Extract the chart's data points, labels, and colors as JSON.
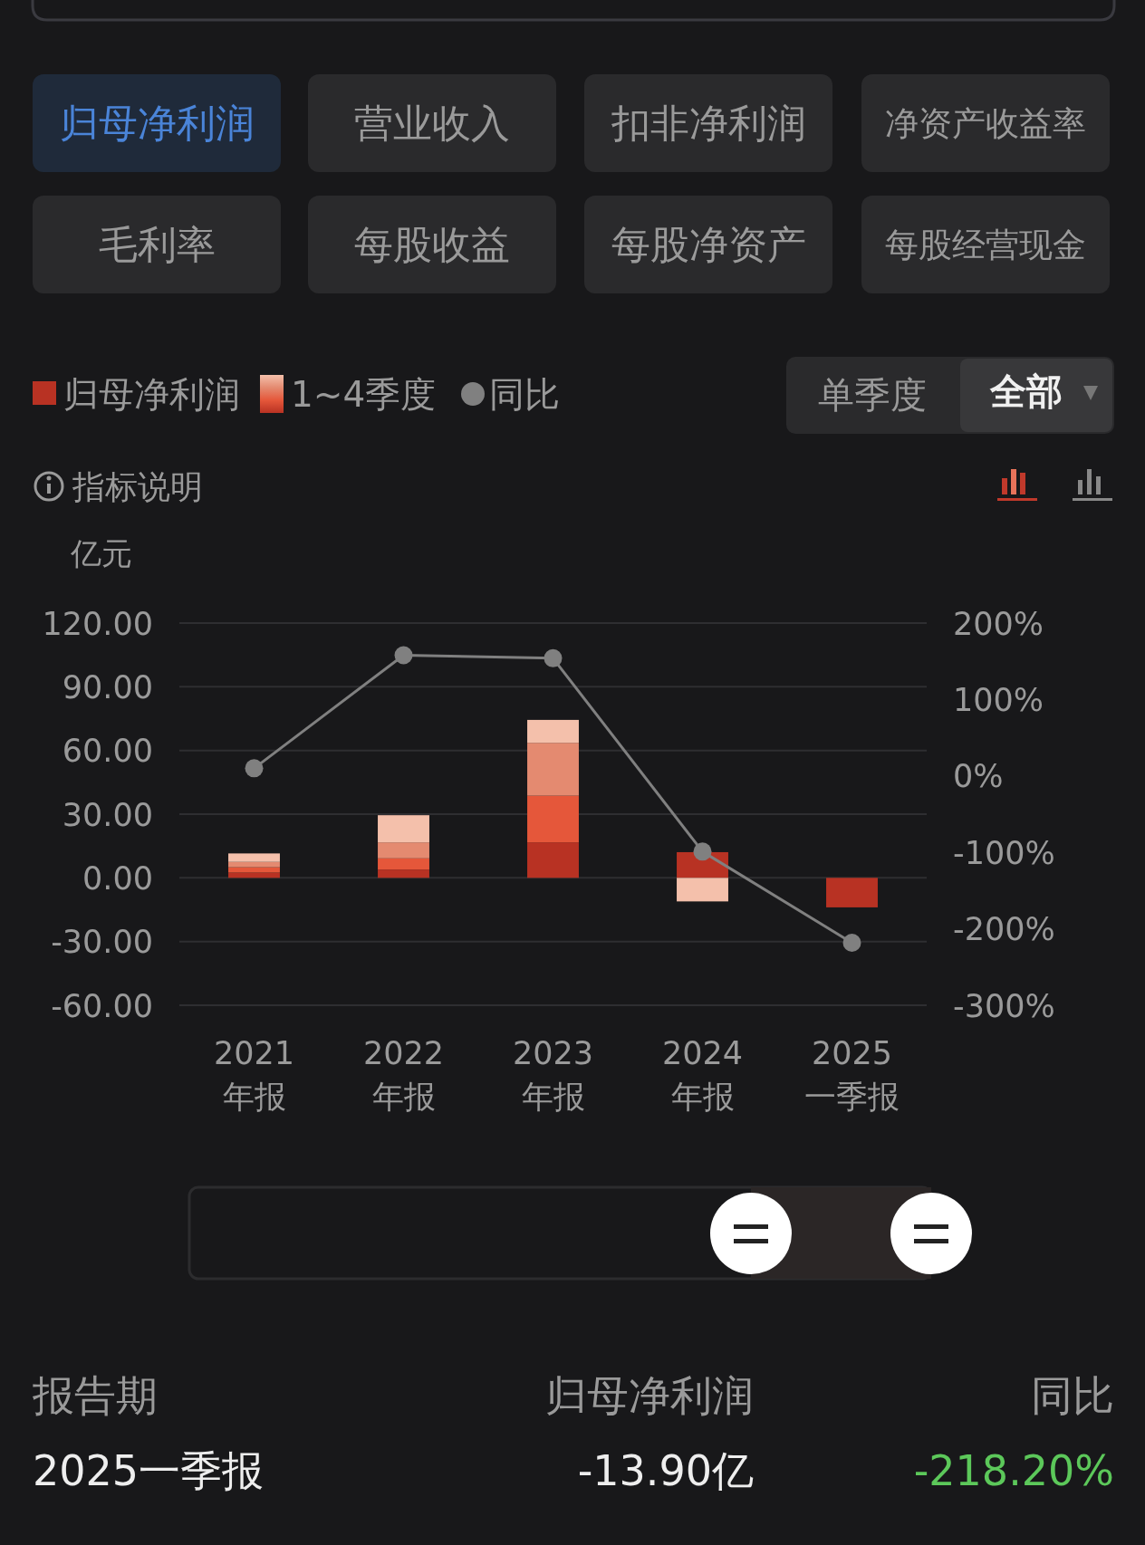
{
  "chart_data": {
    "type": "bar",
    "stacked": true,
    "ylabel": "亿元",
    "categories": [
      "2021\n年报",
      "2022\n年报",
      "2023\n年报",
      "2024\n年报",
      "2025\n一季报"
    ],
    "series": [
      {
        "name": "归母净利润",
        "color": "#b83223",
        "values": [
          2.5,
          3.9,
          16.7,
          12.1,
          -13.9
        ]
      },
      {
        "color": "#e5573a",
        "values": [
          2.5,
          5.3,
          22.0,
          0,
          null
        ]
      },
      {
        "color": "#e48a70",
        "values": [
          2.5,
          7.5,
          24.9,
          0,
          null
        ]
      },
      {
        "color": "#f4c0ab",
        "values": [
          4.0,
          12.8,
          10.8,
          -11.1,
          null
        ]
      },
      {
        "name": "同比",
        "type": "line",
        "axis": "y2",
        "color": "#808080",
        "marker": "circle",
        "values": [
          10,
          158,
          154,
          -99,
          -218.2
        ]
      }
    ],
    "ylim": [
      -60,
      120
    ],
    "yticks": [
      {
        "value": -60,
        "label": "-60.00"
      },
      {
        "value": -30,
        "label": "-30.00"
      },
      {
        "value": 0,
        "label": "0.00"
      },
      {
        "value": 30,
        "label": "30.00"
      },
      {
        "value": 60,
        "label": "60.00"
      },
      {
        "value": 90,
        "label": "90.00"
      },
      {
        "value": 120,
        "label": "120.00"
      }
    ],
    "y2lim": [
      -300,
      200
    ],
    "y2ticks": [
      {
        "value": -300,
        "label": "-300%"
      },
      {
        "value": -200,
        "label": "-200%"
      },
      {
        "value": -100,
        "label": "-100%"
      },
      {
        "value": 0,
        "label": "0%"
      },
      {
        "value": 100,
        "label": "100%"
      },
      {
        "value": 200,
        "label": "200%"
      }
    ],
    "grid": "y",
    "legend": "top left",
    "annotations": [
      "归母净利润",
      "营业收入",
      "扣非净利润",
      "净资产收益率",
      "毛利率",
      "每股收益",
      "每股净资产",
      "每股经营现金",
      "1~4季度",
      "单季度",
      "全部",
      "指标说明",
      "报告期",
      "归母净利润",
      "同比",
      "2025一季报",
      "-13.90亿",
      "-218.20%"
    ]
  }
}
